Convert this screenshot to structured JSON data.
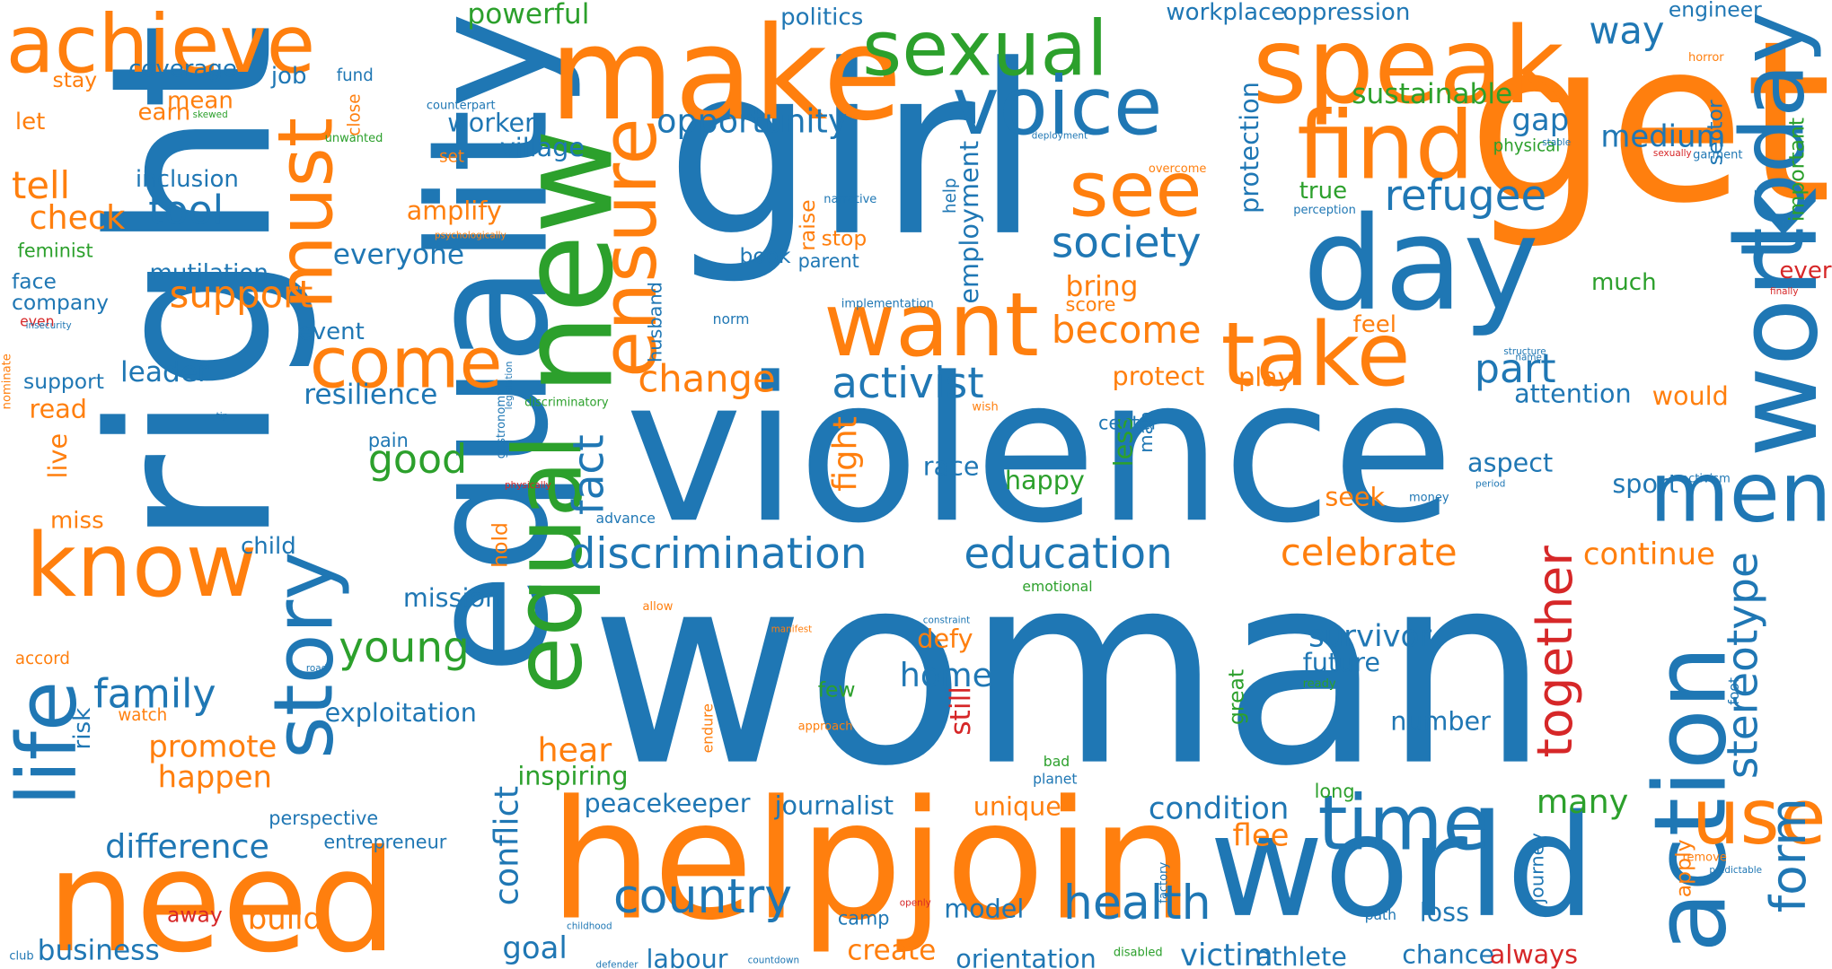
{
  "colors": {
    "blue": "#1f77b4",
    "orange": "#ff7f0e",
    "green": "#2ca02c",
    "red": "#d62728"
  },
  "words": [
    {
      "text": "woman",
      "color": "blue"
    },
    {
      "text": "violence",
      "color": "blue"
    },
    {
      "text": "girl",
      "color": "blue"
    },
    {
      "text": "right",
      "color": "blue"
    },
    {
      "text": "equality",
      "color": "blue"
    },
    {
      "text": "get",
      "color": "orange"
    },
    {
      "text": "help",
      "color": "orange"
    },
    {
      "text": "join",
      "color": "orange"
    },
    {
      "text": "make",
      "color": "orange"
    },
    {
      "text": "need",
      "color": "orange"
    },
    {
      "text": "new",
      "color": "green"
    },
    {
      "text": "world",
      "color": "blue"
    },
    {
      "text": "speak",
      "color": "orange"
    },
    {
      "text": "day",
      "color": "blue"
    },
    {
      "text": "sexual",
      "color": "green"
    },
    {
      "text": "achieve",
      "color": "orange"
    },
    {
      "text": "know",
      "color": "orange"
    },
    {
      "text": "voice",
      "color": "blue"
    },
    {
      "text": "find",
      "color": "orange"
    },
    {
      "text": "equal",
      "color": "green"
    },
    {
      "text": "take",
      "color": "orange"
    },
    {
      "text": "want",
      "color": "orange"
    },
    {
      "text": "work",
      "color": "blue"
    },
    {
      "text": "action",
      "color": "blue"
    },
    {
      "text": "story",
      "color": "blue"
    },
    {
      "text": "life",
      "color": "blue"
    },
    {
      "text": "men",
      "color": "blue"
    },
    {
      "text": "time",
      "color": "blue"
    },
    {
      "text": "ensure",
      "color": "orange"
    },
    {
      "text": "must",
      "color": "orange"
    },
    {
      "text": "today",
      "color": "blue"
    },
    {
      "text": "see",
      "color": "orange"
    },
    {
      "text": "come",
      "color": "orange"
    },
    {
      "text": "use",
      "color": "orange"
    },
    {
      "text": "health",
      "color": "blue"
    },
    {
      "text": "country",
      "color": "blue"
    },
    {
      "text": "discrimination",
      "color": "blue"
    },
    {
      "text": "education",
      "color": "blue"
    },
    {
      "text": "refugee",
      "color": "blue"
    },
    {
      "text": "society",
      "color": "blue"
    },
    {
      "text": "form",
      "color": "blue"
    },
    {
      "text": "together",
      "color": "red"
    },
    {
      "text": "stereotype",
      "color": "blue"
    },
    {
      "text": "celebrate",
      "color": "orange"
    },
    {
      "text": "activist",
      "color": "blue"
    },
    {
      "text": "change",
      "color": "orange"
    },
    {
      "text": "become",
      "color": "orange"
    },
    {
      "text": "young",
      "color": "green"
    },
    {
      "text": "family",
      "color": "blue"
    },
    {
      "text": "support",
      "color": "orange"
    },
    {
      "text": "tool",
      "color": "blue"
    },
    {
      "text": "part",
      "color": "blue"
    },
    {
      "text": "good",
      "color": "green"
    },
    {
      "text": "fact",
      "color": "blue"
    },
    {
      "text": "way",
      "color": "blue"
    },
    {
      "text": "tell",
      "color": "orange"
    },
    {
      "text": "check",
      "color": "orange"
    },
    {
      "text": "opportunity",
      "color": "blue"
    },
    {
      "text": "home",
      "color": "blue"
    },
    {
      "text": "difference",
      "color": "blue"
    },
    {
      "text": "promote",
      "color": "orange"
    },
    {
      "text": "happen",
      "color": "orange"
    },
    {
      "text": "build",
      "color": "orange"
    },
    {
      "text": "business",
      "color": "blue"
    },
    {
      "text": "create",
      "color": "orange"
    },
    {
      "text": "goal",
      "color": "blue"
    },
    {
      "text": "fight",
      "color": "orange"
    },
    {
      "text": "survivor",
      "color": "blue"
    },
    {
      "text": "hear",
      "color": "orange"
    },
    {
      "text": "conflict",
      "color": "blue"
    },
    {
      "text": "many",
      "color": "green"
    },
    {
      "text": "condition",
      "color": "blue"
    },
    {
      "text": "victim",
      "color": "blue"
    },
    {
      "text": "continue",
      "color": "orange"
    },
    {
      "text": "flee",
      "color": "orange"
    },
    {
      "text": "medium",
      "color": "blue"
    },
    {
      "text": "sustainable",
      "color": "green"
    },
    {
      "text": "gap",
      "color": "blue"
    },
    {
      "text": "powerful",
      "color": "green"
    },
    {
      "text": "bring",
      "color": "orange"
    },
    {
      "text": "everyone",
      "color": "blue"
    },
    {
      "text": "amplify",
      "color": "orange"
    },
    {
      "text": "worker",
      "color": "blue"
    },
    {
      "text": "village",
      "color": "blue"
    },
    {
      "text": "protect",
      "color": "orange"
    },
    {
      "text": "play",
      "color": "orange"
    },
    {
      "text": "employment",
      "color": "blue"
    },
    {
      "text": "protection",
      "color": "blue"
    },
    {
      "text": "leader",
      "color": "blue"
    },
    {
      "text": "resilience",
      "color": "blue"
    },
    {
      "text": "mission",
      "color": "blue"
    },
    {
      "text": "exploitation",
      "color": "blue"
    },
    {
      "text": "peacekeeper",
      "color": "blue"
    },
    {
      "text": "journalist",
      "color": "blue"
    },
    {
      "text": "unique",
      "color": "orange"
    },
    {
      "text": "labour",
      "color": "blue"
    },
    {
      "text": "orientation",
      "color": "blue"
    },
    {
      "text": "athlete",
      "color": "blue"
    },
    {
      "text": "chance",
      "color": "blue"
    },
    {
      "text": "always",
      "color": "red"
    },
    {
      "text": "number",
      "color": "blue"
    },
    {
      "text": "loss",
      "color": "blue"
    },
    {
      "text": "defy",
      "color": "orange"
    },
    {
      "text": "future",
      "color": "blue"
    },
    {
      "text": "inspiring",
      "color": "green"
    },
    {
      "text": "model",
      "color": "blue"
    },
    {
      "text": "still",
      "color": "red"
    },
    {
      "text": "less",
      "color": "green"
    },
    {
      "text": "seek",
      "color": "orange"
    },
    {
      "text": "race",
      "color": "blue"
    },
    {
      "text": "happy",
      "color": "green"
    },
    {
      "text": "aspect",
      "color": "blue"
    },
    {
      "text": "sport",
      "color": "blue"
    },
    {
      "text": "attention",
      "color": "blue"
    },
    {
      "text": "would",
      "color": "orange"
    },
    {
      "text": "much",
      "color": "green"
    },
    {
      "text": "ever",
      "color": "red"
    },
    {
      "text": "true",
      "color": "green"
    },
    {
      "text": "feel",
      "color": "orange"
    },
    {
      "text": "mutilation",
      "color": "blue"
    },
    {
      "text": "inclusion",
      "color": "blue"
    },
    {
      "text": "company",
      "color": "blue"
    },
    {
      "text": "face",
      "color": "blue"
    },
    {
      "text": "feminist",
      "color": "green"
    },
    {
      "text": "coverage",
      "color": "blue"
    },
    {
      "text": "job",
      "color": "blue"
    },
    {
      "text": "mean",
      "color": "orange"
    },
    {
      "text": "earn",
      "color": "orange"
    },
    {
      "text": "politics",
      "color": "blue"
    },
    {
      "text": "workplace",
      "color": "blue"
    },
    {
      "text": "oppression",
      "color": "blue"
    },
    {
      "text": "engineer",
      "color": "blue"
    },
    {
      "text": "let",
      "color": "orange"
    },
    {
      "text": "stay",
      "color": "orange"
    },
    {
      "text": "read",
      "color": "orange"
    },
    {
      "text": "live",
      "color": "orange"
    },
    {
      "text": "miss",
      "color": "orange"
    },
    {
      "text": "child",
      "color": "blue"
    },
    {
      "text": "event",
      "color": "blue"
    },
    {
      "text": "score",
      "color": "orange"
    },
    {
      "text": "book",
      "color": "blue"
    },
    {
      "text": "parent",
      "color": "blue"
    },
    {
      "text": "raise",
      "color": "orange"
    },
    {
      "text": "stop",
      "color": "orange"
    },
    {
      "text": "husband",
      "color": "blue"
    },
    {
      "text": "hold",
      "color": "orange"
    },
    {
      "text": "few",
      "color": "green"
    },
    {
      "text": "great",
      "color": "green"
    },
    {
      "text": "risk",
      "color": "blue"
    },
    {
      "text": "watch",
      "color": "orange"
    },
    {
      "text": "accord",
      "color": "orange"
    },
    {
      "text": "perspective",
      "color": "blue"
    },
    {
      "text": "entrepreneur",
      "color": "blue"
    },
    {
      "text": "camp",
      "color": "blue"
    },
    {
      "text": "important",
      "color": "green"
    },
    {
      "text": "sector",
      "color": "blue"
    },
    {
      "text": "apply",
      "color": "orange"
    },
    {
      "text": "journey",
      "color": "blue"
    },
    {
      "text": "long",
      "color": "green"
    },
    {
      "text": "man",
      "color": "blue"
    },
    {
      "text": "center",
      "color": "blue"
    },
    {
      "text": "pain",
      "color": "blue"
    },
    {
      "text": "fund",
      "color": "blue"
    },
    {
      "text": "physical",
      "color": "green"
    },
    {
      "text": "away",
      "color": "red"
    },
    {
      "text": "set",
      "color": "orange"
    },
    {
      "text": "close",
      "color": "orange"
    },
    {
      "text": "unwanted",
      "color": "green"
    },
    {
      "text": "skewed",
      "color": "green"
    },
    {
      "text": "counterpart",
      "color": "blue"
    },
    {
      "text": "help",
      "color": "blue"
    },
    {
      "text": "narrative",
      "color": "blue"
    },
    {
      "text": "psychologically",
      "color": "orange"
    },
    {
      "text": "implementation",
      "color": "blue"
    },
    {
      "text": "norm",
      "color": "blue"
    },
    {
      "text": "overcome",
      "color": "orange"
    },
    {
      "text": "perception",
      "color": "blue"
    },
    {
      "text": "deployment",
      "color": "blue"
    },
    {
      "text": "stable",
      "color": "blue"
    },
    {
      "text": "sexually",
      "color": "red"
    },
    {
      "text": "garment",
      "color": "blue"
    },
    {
      "text": "horror",
      "color": "orange"
    },
    {
      "text": "finally",
      "color": "red"
    },
    {
      "text": "structure",
      "color": "blue"
    },
    {
      "text": "name",
      "color": "blue"
    },
    {
      "text": "activism",
      "color": "blue"
    },
    {
      "text": "money",
      "color": "blue"
    },
    {
      "text": "period",
      "color": "blue"
    },
    {
      "text": "emotional",
      "color": "green"
    },
    {
      "text": "allow",
      "color": "orange"
    },
    {
      "text": "manifest",
      "color": "orange"
    },
    {
      "text": "constraint",
      "color": "blue"
    },
    {
      "text": "ready",
      "color": "green"
    },
    {
      "text": "foot",
      "color": "blue"
    },
    {
      "text": "endure",
      "color": "orange"
    },
    {
      "text": "approach",
      "color": "orange"
    },
    {
      "text": "bad",
      "color": "green"
    },
    {
      "text": "planet",
      "color": "blue"
    },
    {
      "text": "openly",
      "color": "red"
    },
    {
      "text": "factory",
      "color": "blue"
    },
    {
      "text": "disabled",
      "color": "green"
    },
    {
      "text": "path",
      "color": "blue"
    },
    {
      "text": "remove",
      "color": "orange"
    },
    {
      "text": "predictable",
      "color": "blue"
    },
    {
      "text": "countdown",
      "color": "blue"
    },
    {
      "text": "defender",
      "color": "blue"
    },
    {
      "text": "childhood",
      "color": "blue"
    },
    {
      "text": "club",
      "color": "blue"
    },
    {
      "text": "road",
      "color": "blue"
    },
    {
      "text": "advance",
      "color": "blue"
    },
    {
      "text": "physically",
      "color": "red"
    },
    {
      "text": "tip",
      "color": "blue"
    },
    {
      "text": "gastronomy",
      "color": "blue"
    },
    {
      "text": "legislation",
      "color": "blue"
    },
    {
      "text": "discriminatory",
      "color": "green"
    },
    {
      "text": "wish",
      "color": "orange"
    },
    {
      "text": "even",
      "color": "red"
    },
    {
      "text": "insecurity",
      "color": "blue"
    },
    {
      "text": "nominate",
      "color": "orange"
    },
    {
      "text": "support",
      "color": "blue"
    },
    {
      "text": "lesson",
      "color": "orange"
    }
  ]
}
